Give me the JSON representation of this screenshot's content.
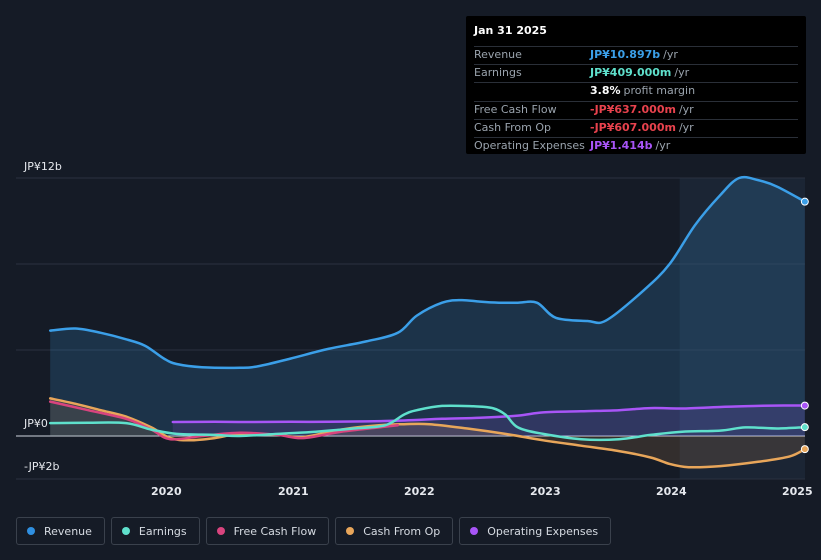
{
  "tooltip": {
    "date": "Jan 31 2025",
    "rows": [
      {
        "label": "Revenue",
        "value": "JP¥10.897b",
        "unit": "/yr",
        "color": "#3b9fe8"
      },
      {
        "label": "Earnings",
        "value": "JP¥409.000m",
        "unit": "/yr",
        "color": "#5fe0cc"
      },
      {
        "label": "",
        "value": "3.8%",
        "unit": "profit margin",
        "color": "#ffffff"
      },
      {
        "label": "Free Cash Flow",
        "value": "-JP¥637.000m",
        "unit": "/yr",
        "color": "#e8424d"
      },
      {
        "label": "Cash From Op",
        "value": "-JP¥607.000m",
        "unit": "/yr",
        "color": "#e8424d"
      },
      {
        "label": "Operating Expenses",
        "value": "JP¥1.414b",
        "unit": "/yr",
        "color": "#a855f7"
      }
    ]
  },
  "legend": [
    {
      "label": "Revenue",
      "color": "#2f8fe0"
    },
    {
      "label": "Earnings",
      "color": "#5fe0cc"
    },
    {
      "label": "Free Cash Flow",
      "color": "#d9447e"
    },
    {
      "label": "Cash From Op",
      "color": "#e8a65a"
    },
    {
      "label": "Operating Expenses",
      "color": "#a855f7"
    }
  ],
  "chart_data": {
    "type": "line",
    "title": "",
    "y_unit": "JP¥ billions",
    "ylim": [
      -2,
      12
    ],
    "y_tick_labels": [
      {
        "value": 12,
        "label": "JP¥12b"
      },
      {
        "value": 0,
        "label": "JP¥0"
      },
      {
        "value": -2,
        "label": "-JP¥2b"
      }
    ],
    "x_tick_labels": [
      {
        "value": 2020,
        "label": "2020"
      },
      {
        "value": 2021,
        "label": "2021"
      },
      {
        "value": 2022,
        "label": "2022"
      },
      {
        "value": 2023,
        "label": "2023"
      },
      {
        "value": 2024,
        "label": "2024"
      },
      {
        "value": 2025,
        "label": "2025"
      }
    ],
    "xlim": [
      2019.0,
      2025.1
    ],
    "highlight_start": 2024.08,
    "series": [
      {
        "name": "Revenue",
        "color": "#3b9fe8",
        "area": true,
        "end_marker": true,
        "x": [
          2019.1,
          2019.3,
          2019.5,
          2019.7,
          2019.85,
          2020.0,
          2020.1,
          2020.3,
          2020.6,
          2020.75,
          2021.0,
          2021.3,
          2021.6,
          2021.85,
          2022.0,
          2022.2,
          2022.35,
          2022.5,
          2022.65,
          2022.8,
          2022.95,
          2023.1,
          2023.35,
          2023.5,
          2023.8,
          2024.0,
          2024.2,
          2024.4,
          2024.55,
          2024.7,
          2024.85,
          2025.07
        ],
        "values": [
          4.9,
          5.0,
          4.8,
          4.5,
          4.2,
          3.6,
          3.35,
          3.2,
          3.17,
          3.25,
          3.6,
          4.05,
          4.4,
          4.8,
          5.6,
          6.2,
          6.32,
          6.25,
          6.2,
          6.2,
          6.2,
          5.5,
          5.35,
          5.38,
          6.8,
          8.0,
          9.8,
          11.2,
          12.0,
          11.9,
          11.6,
          10.9
        ]
      },
      {
        "name": "Earnings",
        "color": "#5fe0cc",
        "area": false,
        "end_marker": true,
        "x": [
          2019.1,
          2019.4,
          2019.7,
          2019.9,
          2020.1,
          2020.4,
          2020.6,
          2020.9,
          2021.2,
          2021.5,
          2021.75,
          2021.9,
          2022.0,
          2022.2,
          2022.45,
          2022.6,
          2022.7,
          2022.8,
          2023.0,
          2023.3,
          2023.6,
          2023.85,
          2024.1,
          2024.4,
          2024.6,
          2024.85,
          2025.07
        ],
        "values": [
          0.6,
          0.62,
          0.6,
          0.3,
          0.1,
          0.05,
          0.0,
          0.1,
          0.2,
          0.35,
          0.5,
          1.0,
          1.2,
          1.4,
          1.38,
          1.3,
          1.0,
          0.4,
          0.1,
          -0.15,
          -0.15,
          0.05,
          0.2,
          0.25,
          0.4,
          0.35,
          0.41
        ]
      },
      {
        "name": "Free Cash Flow",
        "color": "#d9447e",
        "area": false,
        "end_marker": false,
        "x": [
          2019.1,
          2019.4,
          2019.7,
          2019.9,
          2020.05,
          2020.3,
          2020.6,
          2020.9,
          2021.1,
          2021.4,
          2021.7,
          2021.85
        ],
        "values": [
          1.6,
          1.2,
          0.8,
          0.3,
          -0.15,
          0.0,
          0.15,
          0.05,
          -0.1,
          0.2,
          0.4,
          0.5
        ]
      },
      {
        "name": "Cash From Op",
        "color": "#e8a65a",
        "area": true,
        "end_marker": true,
        "x": [
          2019.1,
          2019.3,
          2019.5,
          2019.7,
          2019.9,
          2020.05,
          2020.2,
          2020.4,
          2020.6,
          2020.9,
          2021.1,
          2021.4,
          2021.7,
          2021.9,
          2022.1,
          2022.4,
          2022.7,
          2023.0,
          2023.3,
          2023.6,
          2023.85,
          2024.0,
          2024.15,
          2024.4,
          2024.7,
          2024.95,
          2025.07
        ],
        "values": [
          1.75,
          1.5,
          1.2,
          0.9,
          0.4,
          -0.1,
          -0.2,
          -0.1,
          0.1,
          0.05,
          -0.05,
          0.3,
          0.5,
          0.55,
          0.55,
          0.35,
          0.1,
          -0.2,
          -0.45,
          -0.7,
          -1.0,
          -1.3,
          -1.45,
          -1.4,
          -1.2,
          -0.95,
          -0.61
        ]
      },
      {
        "name": "Operating Expenses",
        "color": "#a855f7",
        "area": true,
        "end_marker": true,
        "x": [
          2020.07,
          2020.4,
          2020.7,
          2021.0,
          2021.3,
          2021.6,
          2021.9,
          2022.2,
          2022.5,
          2022.8,
          2023.0,
          2023.3,
          2023.6,
          2023.85,
          2024.1,
          2024.4,
          2024.7,
          2024.9,
          2025.07
        ],
        "values": [
          0.65,
          0.66,
          0.65,
          0.66,
          0.66,
          0.68,
          0.72,
          0.8,
          0.85,
          0.95,
          1.1,
          1.15,
          1.2,
          1.3,
          1.28,
          1.35,
          1.4,
          1.42,
          1.414
        ]
      }
    ]
  }
}
